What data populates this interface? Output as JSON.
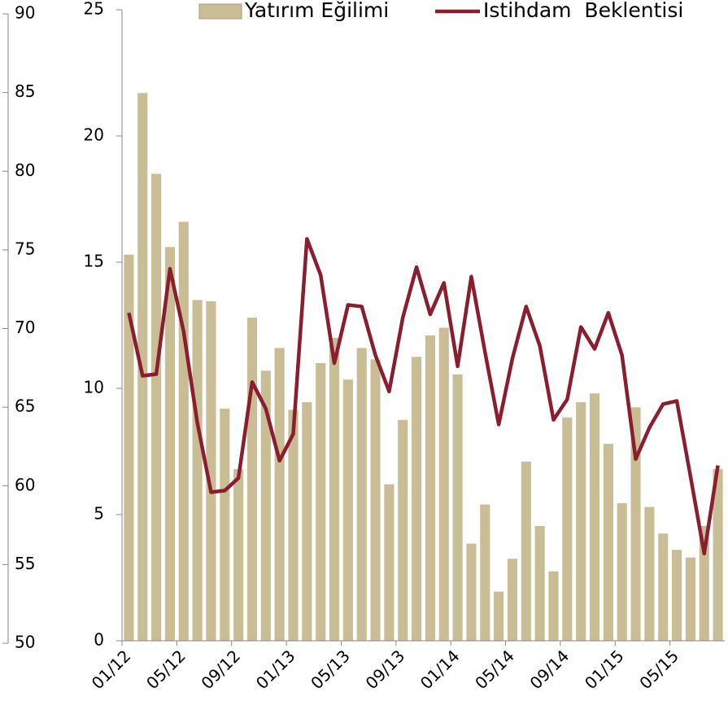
{
  "chart_data": {
    "type": "bar",
    "categories": [
      "01/12",
      null,
      null,
      null,
      "05/12",
      null,
      null,
      null,
      "09/12",
      null,
      null,
      null,
      "01/13",
      null,
      null,
      null,
      "05/13",
      null,
      null,
      null,
      "09/13",
      null,
      null,
      null,
      "01/14",
      null,
      null,
      null,
      "05/14",
      null,
      null,
      null,
      "09/14",
      null,
      null,
      null,
      "01/15",
      null,
      null,
      null,
      "05/15",
      null,
      null,
      null
    ],
    "series": [
      {
        "name": "Yatırım Eğilimi",
        "color": "#c9bd96",
        "values": [
          15.3,
          21.7,
          18.5,
          15.6,
          16.6,
          13.5,
          13.45,
          9.2,
          6.8,
          12.8,
          10.7,
          11.6,
          9.15,
          9.45,
          11.0,
          12.0,
          10.35,
          11.6,
          11.15,
          6.2,
          8.75,
          11.25,
          12.1,
          12.4,
          10.55,
          3.85,
          5.4,
          1.95,
          3.25,
          7.1,
          4.55,
          2.75,
          8.85,
          9.45,
          9.8,
          7.8,
          5.45,
          9.25,
          5.3,
          4.25,
          3.6,
          3.3,
          4.55,
          6.8
        ]
      },
      {
        "name": "Istihdam  Beklentisi",
        "color": "#8b1e2e",
        "type": "line",
        "axis": "y2",
        "values": [
          71.0,
          67.0,
          67.1,
          73.8,
          69.8,
          64.0,
          59.6,
          59.7,
          60.5,
          66.6,
          64.9,
          61.6,
          63.3,
          75.7,
          73.4,
          67.8,
          71.5,
          71.4,
          68.3,
          66.0,
          70.7,
          73.9,
          70.9,
          72.9,
          67.6,
          73.3,
          68.5,
          63.9,
          68.1,
          71.4,
          68.9,
          64.2,
          65.5,
          70.1,
          68.7,
          71.0,
          68.3,
          61.7,
          63.7,
          65.2,
          65.4,
          60.6,
          55.7,
          61.3
        ]
      }
    ],
    "ylim": [
      0,
      25
    ],
    "yticks": [
      0,
      5,
      10,
      15,
      20,
      25
    ],
    "y2lim": [
      50,
      90
    ],
    "y2ticks": [
      50,
      55,
      60,
      65,
      70,
      75,
      80,
      85,
      90
    ],
    "legend": "top"
  }
}
